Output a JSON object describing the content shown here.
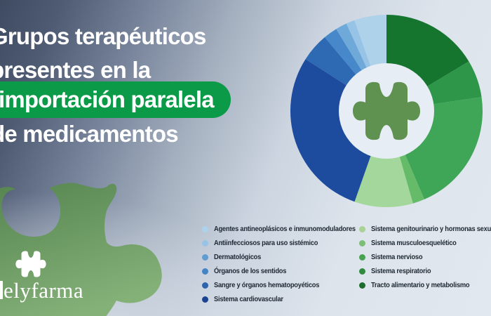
{
  "title": {
    "line1": "Grupos terapéuticos",
    "line2": "presentes en la",
    "highlight": "importación paralela",
    "line4": "de medicamentos"
  },
  "brand": {
    "logo_text": "elyfarma"
  },
  "colors": {
    "background_top_left": "#46536a",
    "background_light": "#e2e8ef",
    "highlight_pill": "#0a9a48",
    "title_text": "#ffffff",
    "legend_text": "#1d2833",
    "donut_hole": "#e7edf4",
    "center_puzzle_icon": "#5f9150",
    "corner_puzzle_top": "#578550",
    "corner_puzzle_bottom": "#84b178"
  },
  "chart_data": {
    "type": "donut",
    "direction": "clockwise",
    "start_angle_deg": 0,
    "center_icon": "puzzle-piece",
    "segments": [
      {
        "label": "Tracto alimentario y metabolismo",
        "percent": 16.4,
        "angle_deg": 59.0,
        "color": "#15752f"
      },
      {
        "label": "Sistema respiratorio",
        "percent": 6.3,
        "angle_deg": 22.7,
        "color": "#2d9648"
      },
      {
        "label": "Sistema nervioso",
        "percent": 20.9,
        "angle_deg": 75.1,
        "color": "#3fa557"
      },
      {
        "label": "Sistema musculoesquelético",
        "percent": 2.0,
        "angle_deg": 7.2,
        "color": "#66bb69"
      },
      {
        "label": "Sistema genitourinario y hormonas sexuales",
        "percent": 9.8,
        "angle_deg": 35.4,
        "color": "#a3d79b"
      },
      {
        "label": "Sistema cardiovascular",
        "percent": 28.7,
        "angle_deg": 103.2,
        "color": "#1d4b9d"
      },
      {
        "label": "Sangre y órganos hematopoyéticos",
        "percent": 4.8,
        "angle_deg": 17.4,
        "color": "#2e6ab4"
      },
      {
        "label": "Órganos de los sentidos",
        "percent": 2.3,
        "angle_deg": 8.4,
        "color": "#4688c9"
      },
      {
        "label": "Dermatológicos",
        "percent": 1.9,
        "angle_deg": 6.9,
        "color": "#6ea9da"
      },
      {
        "label": "Antiinfecciosos para uso sistémico",
        "percent": 1.4,
        "angle_deg": 5.2,
        "color": "#97c3e6"
      },
      {
        "label": "Agentes antineoplásicos e inmunomoduladores",
        "percent": 5.4,
        "angle_deg": 19.5,
        "color": "#aed2ea"
      }
    ]
  },
  "legend": {
    "left_column": [
      {
        "label": "Agentes antineoplásicos e inmunomoduladores",
        "color": "#aed2ea"
      },
      {
        "label": "Antiinfecciosos para uso sistémico",
        "color": "#97c3e6"
      },
      {
        "label": "Dermatológicos",
        "color": "#5f9cd1"
      },
      {
        "label": "Órganos de los sentidos",
        "color": "#4284c6"
      },
      {
        "label": "Sangre y órganos hematopoyéticos",
        "color": "#2c63ad"
      },
      {
        "label": "Sistema cardiovascular",
        "color": "#1b438f"
      }
    ],
    "right_column": [
      {
        "label": "Sistema genitourinario y hormonas sexuales",
        "color": "#a9d295"
      },
      {
        "label": "Sistema musculoesquelético",
        "color": "#7cbe76"
      },
      {
        "label": "Sistema nervioso",
        "color": "#47a352"
      },
      {
        "label": "Sistema respiratorio",
        "color": "#2f8b3e"
      },
      {
        "label": "Tracto alimentario y metabolismo",
        "color": "#1d6c2e"
      }
    ]
  }
}
